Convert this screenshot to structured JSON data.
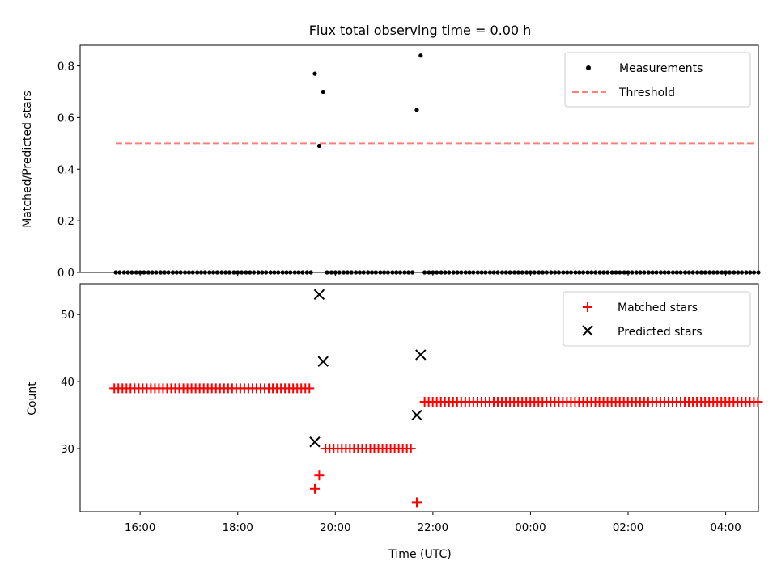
{
  "title": "Flux total observing time = 0.00 h",
  "chart_data": [
    {
      "type": "scatter",
      "ylabel": "Matched/Predicted stars",
      "ylim": [
        0,
        0.88
      ],
      "yticks": [
        "0.0",
        "0.2",
        "0.4",
        "0.6",
        "0.8"
      ],
      "ytick_values": [
        0,
        0.2,
        0.4,
        0.6,
        0.8
      ],
      "xlim_hours": [
        14.77,
        28.67
      ],
      "legend_position": "top-right",
      "series": [
        {
          "name": "Measurements",
          "color": "#000000",
          "marker": "dot",
          "points": [
            [
              15.5,
              0
            ],
            [
              15.58,
              0
            ],
            [
              15.67,
              0
            ],
            [
              15.75,
              0
            ],
            [
              15.83,
              0
            ],
            [
              15.92,
              0
            ],
            [
              16.0,
              0
            ],
            [
              16.08,
              0
            ],
            [
              16.17,
              0
            ],
            [
              16.25,
              0
            ],
            [
              16.33,
              0
            ],
            [
              16.42,
              0
            ],
            [
              16.5,
              0
            ],
            [
              16.58,
              0
            ],
            [
              16.67,
              0
            ],
            [
              16.75,
              0
            ],
            [
              16.83,
              0
            ],
            [
              16.92,
              0
            ],
            [
              17.0,
              0
            ],
            [
              17.08,
              0
            ],
            [
              17.17,
              0
            ],
            [
              17.25,
              0
            ],
            [
              17.33,
              0
            ],
            [
              17.42,
              0
            ],
            [
              17.5,
              0
            ],
            [
              17.58,
              0
            ],
            [
              17.67,
              0
            ],
            [
              17.75,
              0
            ],
            [
              17.83,
              0
            ],
            [
              17.92,
              0
            ],
            [
              18.0,
              0
            ],
            [
              18.08,
              0
            ],
            [
              18.17,
              0
            ],
            [
              18.25,
              0
            ],
            [
              18.33,
              0
            ],
            [
              18.42,
              0
            ],
            [
              18.5,
              0
            ],
            [
              18.58,
              0
            ],
            [
              18.67,
              0
            ],
            [
              18.75,
              0
            ],
            [
              18.83,
              0
            ],
            [
              18.92,
              0
            ],
            [
              19.0,
              0
            ],
            [
              19.08,
              0
            ],
            [
              19.17,
              0
            ],
            [
              19.25,
              0
            ],
            [
              19.33,
              0
            ],
            [
              19.42,
              0
            ],
            [
              19.5,
              0
            ],
            [
              19.58,
              0.77
            ],
            [
              19.67,
              0.49
            ],
            [
              19.75,
              0.7
            ],
            [
              19.83,
              0
            ],
            [
              19.92,
              0
            ],
            [
              20.0,
              0
            ],
            [
              20.08,
              0
            ],
            [
              20.17,
              0
            ],
            [
              20.25,
              0
            ],
            [
              20.33,
              0
            ],
            [
              20.42,
              0
            ],
            [
              20.5,
              0
            ],
            [
              20.58,
              0
            ],
            [
              20.67,
              0
            ],
            [
              20.75,
              0
            ],
            [
              20.83,
              0
            ],
            [
              20.92,
              0
            ],
            [
              21.0,
              0
            ],
            [
              21.08,
              0
            ],
            [
              21.17,
              0
            ],
            [
              21.25,
              0
            ],
            [
              21.33,
              0
            ],
            [
              21.42,
              0
            ],
            [
              21.5,
              0
            ],
            [
              21.58,
              0
            ],
            [
              21.67,
              0.63
            ],
            [
              21.75,
              0.84
            ],
            [
              21.83,
              0
            ],
            [
              21.92,
              0
            ],
            [
              22.0,
              0
            ],
            [
              22.08,
              0
            ],
            [
              22.17,
              0
            ],
            [
              22.25,
              0
            ],
            [
              22.33,
              0
            ],
            [
              22.42,
              0
            ],
            [
              22.5,
              0
            ],
            [
              22.58,
              0
            ],
            [
              22.67,
              0
            ],
            [
              22.75,
              0
            ],
            [
              22.83,
              0
            ],
            [
              22.92,
              0
            ],
            [
              23.0,
              0
            ],
            [
              23.08,
              0
            ],
            [
              23.17,
              0
            ],
            [
              23.25,
              0
            ],
            [
              23.33,
              0
            ],
            [
              23.42,
              0
            ],
            [
              23.5,
              0
            ],
            [
              23.58,
              0
            ],
            [
              23.67,
              0
            ],
            [
              23.75,
              0
            ],
            [
              23.83,
              0
            ],
            [
              23.92,
              0
            ],
            [
              24.0,
              0
            ],
            [
              24.08,
              0
            ],
            [
              24.17,
              0
            ],
            [
              24.25,
              0
            ],
            [
              24.33,
              0
            ],
            [
              24.42,
              0
            ],
            [
              24.5,
              0
            ],
            [
              24.58,
              0
            ],
            [
              24.67,
              0
            ],
            [
              24.75,
              0
            ],
            [
              24.83,
              0
            ],
            [
              24.92,
              0
            ],
            [
              25.0,
              0
            ],
            [
              25.08,
              0
            ],
            [
              25.17,
              0
            ],
            [
              25.25,
              0
            ],
            [
              25.33,
              0
            ],
            [
              25.42,
              0
            ],
            [
              25.5,
              0
            ],
            [
              25.58,
              0
            ],
            [
              25.67,
              0
            ],
            [
              25.75,
              0
            ],
            [
              25.83,
              0
            ],
            [
              25.92,
              0
            ],
            [
              26.0,
              0
            ],
            [
              26.08,
              0
            ],
            [
              26.17,
              0
            ],
            [
              26.25,
              0
            ],
            [
              26.33,
              0
            ],
            [
              26.42,
              0
            ],
            [
              26.5,
              0
            ],
            [
              26.58,
              0
            ],
            [
              26.67,
              0
            ],
            [
              26.75,
              0
            ],
            [
              26.83,
              0
            ],
            [
              26.92,
              0
            ],
            [
              27.0,
              0
            ],
            [
              27.08,
              0
            ],
            [
              27.17,
              0
            ],
            [
              27.25,
              0
            ],
            [
              27.33,
              0
            ],
            [
              27.42,
              0
            ],
            [
              27.5,
              0
            ],
            [
              27.58,
              0
            ],
            [
              27.67,
              0
            ],
            [
              27.75,
              0
            ],
            [
              27.83,
              0
            ],
            [
              27.92,
              0
            ],
            [
              28.0,
              0
            ],
            [
              28.08,
              0
            ],
            [
              28.17,
              0
            ],
            [
              28.25,
              0
            ],
            [
              28.33,
              0
            ],
            [
              28.42,
              0
            ],
            [
              28.5,
              0
            ],
            [
              28.58,
              0
            ],
            [
              28.67,
              0
            ]
          ]
        },
        {
          "name": "Threshold",
          "color": "#ff7f7f",
          "style": "dashed",
          "points": [
            [
              15.5,
              0.5
            ],
            [
              28.6,
              0.5
            ]
          ]
        }
      ]
    },
    {
      "type": "scatter",
      "xlabel": "Time (UTC)",
      "ylabel": "Count",
      "ylim": [
        20.6,
        54.6
      ],
      "yticks": [
        "30",
        "40",
        "50"
      ],
      "ytick_values": [
        30,
        40,
        50
      ],
      "xticks": [
        "16:00",
        "18:00",
        "20:00",
        "22:00",
        "00:00",
        "02:00",
        "04:00"
      ],
      "xtick_hours": [
        16,
        18,
        20,
        22,
        24,
        26,
        28
      ],
      "xlim_hours": [
        14.77,
        28.67
      ],
      "legend_position": "top-right",
      "series": [
        {
          "name": "Matched stars",
          "color": "#ff0000",
          "marker": "plus",
          "segments": [
            {
              "from": 15.47,
              "to": 19.5,
              "step": 0.0833,
              "y": 39
            },
            {
              "from": 19.8,
              "to": 21.57,
              "step": 0.0833,
              "y": 30
            },
            {
              "from": 21.83,
              "to": 28.67,
              "step": 0.0833,
              "y": 37
            }
          ],
          "points": [
            [
              19.58,
              24
            ],
            [
              19.67,
              26
            ],
            [
              21.67,
              22
            ]
          ]
        },
        {
          "name": "Predicted stars",
          "color": "#000000",
          "marker": "x",
          "points": [
            [
              19.58,
              31
            ],
            [
              19.67,
              53
            ],
            [
              19.75,
              43
            ],
            [
              21.67,
              35
            ],
            [
              21.75,
              44
            ]
          ]
        }
      ]
    }
  ]
}
